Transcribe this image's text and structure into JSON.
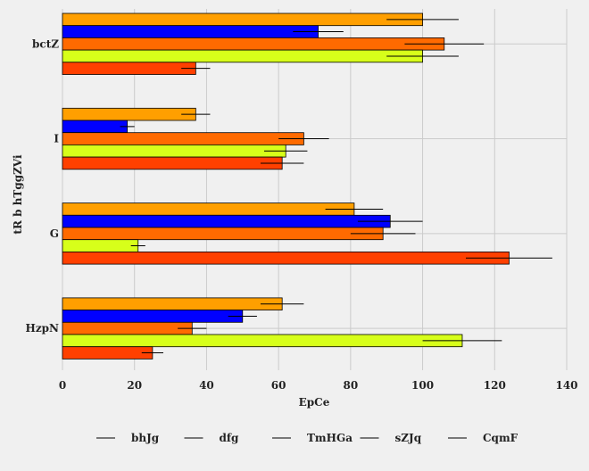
{
  "chart_data": {
    "type": "bar",
    "orientation": "horizontal",
    "title": "",
    "xlabel": "EpCe",
    "ylabel": "tR b hTggZVi",
    "xlim": [
      0,
      140
    ],
    "xticks": [
      0,
      20,
      40,
      60,
      80,
      100,
      120,
      140
    ],
    "grid": true,
    "legend_position": "bottom",
    "categories": [
      "bctZ",
      "I",
      "G",
      "HzpN"
    ],
    "series": [
      {
        "name": "bhJg",
        "color": "#ff9f00",
        "values": [
          100,
          37,
          81,
          61
        ],
        "errors": [
          10,
          4,
          8,
          6
        ]
      },
      {
        "name": "dfg",
        "color": "#0000ff",
        "values": [
          71,
          18,
          91,
          50
        ],
        "errors": [
          7,
          2,
          9,
          4
        ]
      },
      {
        "name": "TmHGa",
        "color": "#ff6a00",
        "values": [
          106,
          67,
          89,
          36
        ],
        "errors": [
          11,
          7,
          9,
          4
        ]
      },
      {
        "name": "sZJq",
        "color": "#d7ff1a",
        "values": [
          100,
          62,
          21,
          111
        ],
        "errors": [
          10,
          6,
          2,
          11
        ]
      },
      {
        "name": "CqmF",
        "color": "#ff4000",
        "values": [
          37,
          61,
          124,
          25
        ],
        "errors": [
          4,
          6,
          12,
          3
        ]
      }
    ]
  }
}
